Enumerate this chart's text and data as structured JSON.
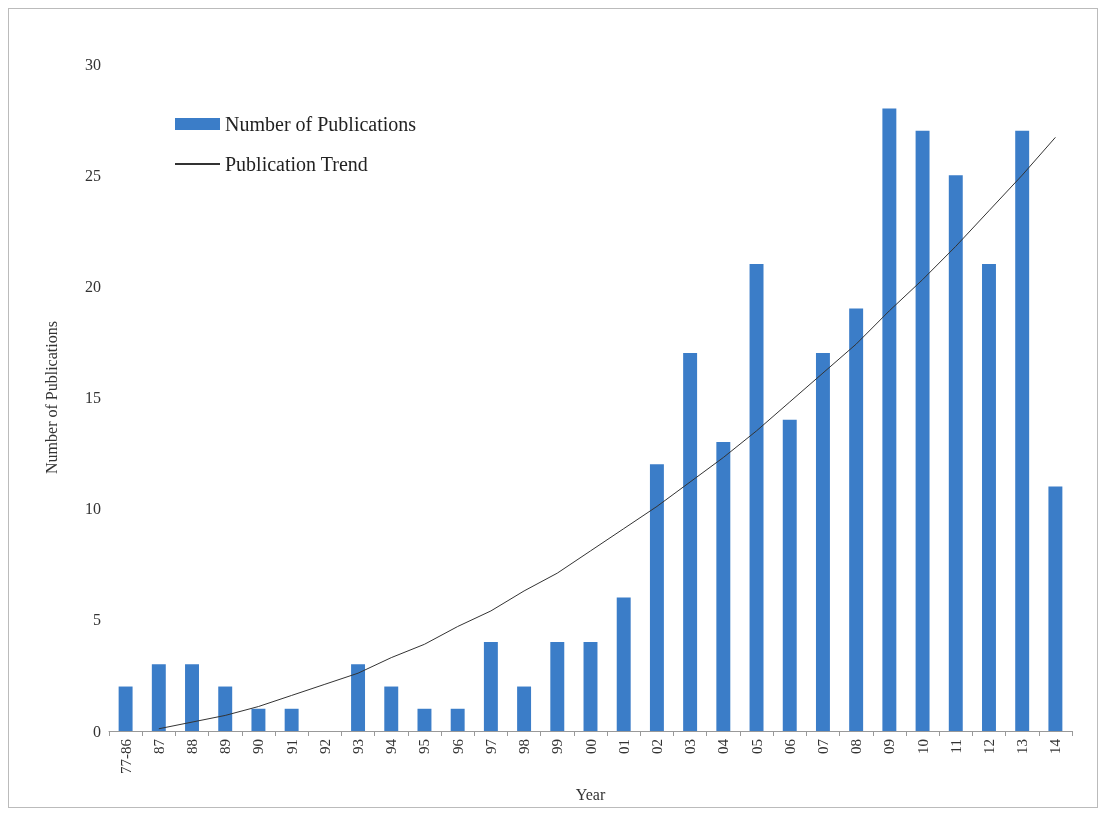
{
  "chart_data": {
    "type": "bar",
    "xlabel": "Year",
    "ylabel": "Number of Publications",
    "categories": [
      "77-86",
      "87",
      "88",
      "89",
      "90",
      "91",
      "92",
      "93",
      "94",
      "95",
      "96",
      "97",
      "98",
      "99",
      "00",
      "01",
      "02",
      "03",
      "04",
      "05",
      "06",
      "07",
      "08",
      "09",
      "10",
      "11",
      "12",
      "13",
      "14"
    ],
    "series": [
      {
        "name": "Number of Publications",
        "color": "#3b7dc8",
        "values": [
          2,
          3,
          3,
          2,
          1,
          1,
          0,
          3,
          2,
          1,
          1,
          4,
          2,
          4,
          4,
          6,
          12,
          17,
          13,
          21,
          14,
          17,
          19,
          28,
          27,
          25,
          21,
          27,
          11
        ]
      },
      {
        "name": "Publication Trend",
        "type": "line",
        "color": "#333333",
        "x": [
          "87",
          "88",
          "89",
          "90",
          "91",
          "92",
          "93",
          "94",
          "95",
          "96",
          "97",
          "98",
          "99",
          "00",
          "01",
          "02",
          "03",
          "04",
          "05",
          "06",
          "07",
          "08",
          "09",
          "10",
          "11",
          "12",
          "13",
          "14"
        ],
        "values": [
          0.1,
          0.4,
          0.7,
          1.1,
          1.6,
          2.1,
          2.6,
          3.3,
          3.9,
          4.7,
          5.4,
          6.3,
          7.1,
          8.1,
          9.1,
          10.1,
          11.2,
          12.3,
          13.5,
          14.8,
          16.1,
          17.4,
          18.9,
          20.3,
          21.8,
          23.4,
          25,
          26.7
        ]
      }
    ],
    "ylim": [
      0,
      30
    ],
    "yticks": [
      0,
      5,
      10,
      15,
      20,
      25,
      30
    ],
    "grid": false,
    "legend": "top left",
    "marker": "none",
    "line_style": "solid"
  }
}
